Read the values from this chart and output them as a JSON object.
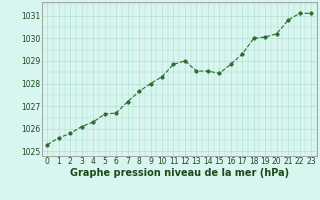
{
  "x": [
    0,
    1,
    2,
    3,
    4,
    5,
    6,
    7,
    8,
    9,
    10,
    11,
    12,
    13,
    14,
    15,
    16,
    17,
    18,
    19,
    20,
    21,
    22,
    23
  ],
  "y": [
    1025.3,
    1025.6,
    1025.8,
    1026.1,
    1026.3,
    1026.65,
    1026.7,
    1027.2,
    1027.65,
    1028.0,
    1028.3,
    1028.85,
    1029.0,
    1028.55,
    1028.55,
    1028.45,
    1028.85,
    1029.3,
    1030.0,
    1030.05,
    1030.2,
    1030.8,
    1031.1,
    1031.1
  ],
  "line_color": "#2d6a2d",
  "marker_color": "#2d6a2d",
  "bg_color": "#d8f5f0",
  "plot_bg_color": "#d8f5f0",
  "grid_color": "#aaddcc",
  "xlabel": "Graphe pression niveau de la mer (hPa)",
  "xlabel_color": "#1a4a1a",
  "ylabel_ticks": [
    1025,
    1026,
    1027,
    1028,
    1029,
    1030,
    1031
  ],
  "ylim": [
    1024.8,
    1031.6
  ],
  "xlim": [
    -0.5,
    23.5
  ],
  "xticks": [
    0,
    1,
    2,
    3,
    4,
    5,
    6,
    7,
    8,
    9,
    10,
    11,
    12,
    13,
    14,
    15,
    16,
    17,
    18,
    19,
    20,
    21,
    22,
    23
  ],
  "axis_fontsize": 5.5,
  "label_fontsize": 7.0
}
